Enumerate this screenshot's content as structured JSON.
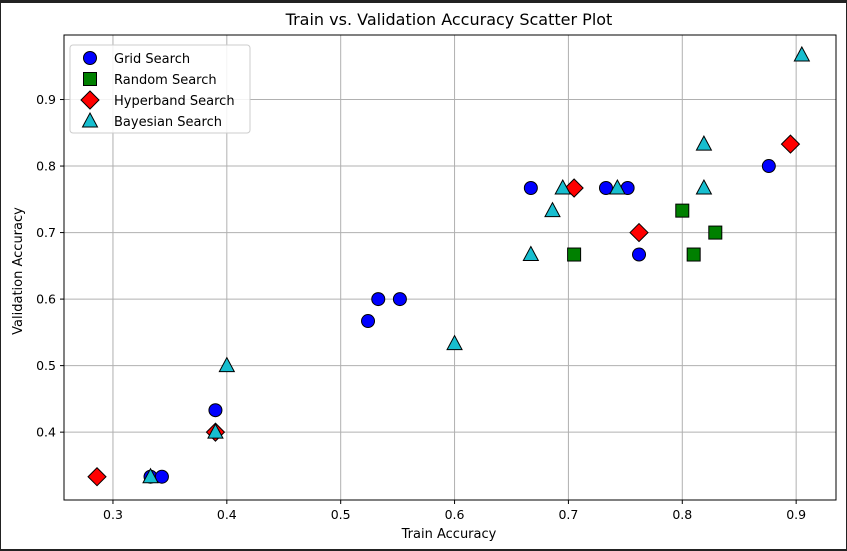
{
  "chart_data": {
    "type": "scatter",
    "title": "Train vs. Validation Accuracy Scatter Plot",
    "xlabel": "Train Accuracy",
    "ylabel": "Validation Accuracy",
    "xlim": [
      0.257,
      0.935
    ],
    "ylim": [
      0.298,
      0.997
    ],
    "xticks": [
      0.3,
      0.4,
      0.5,
      0.6,
      0.7,
      0.8,
      0.9
    ],
    "xtick_labels": [
      "0.3",
      "0.4",
      "0.5",
      "0.6",
      "0.7",
      "0.8",
      "0.9"
    ],
    "yticks": [
      0.4,
      0.5,
      0.6,
      0.7,
      0.8,
      0.9
    ],
    "ytick_labels": [
      "0.4",
      "0.5",
      "0.6",
      "0.7",
      "0.8",
      "0.9"
    ],
    "grid": true,
    "legend_position": "top-left",
    "series": [
      {
        "name": "Grid Search",
        "marker": "circle",
        "color": "#0000ff",
        "points": [
          [
            0.333,
            0.333
          ],
          [
            0.343,
            0.333
          ],
          [
            0.39,
            0.433
          ],
          [
            0.524,
            0.567
          ],
          [
            0.533,
            0.6
          ],
          [
            0.552,
            0.6
          ],
          [
            0.667,
            0.767
          ],
          [
            0.733,
            0.767
          ],
          [
            0.752,
            0.767
          ],
          [
            0.762,
            0.667
          ],
          [
            0.876,
            0.8
          ]
        ]
      },
      {
        "name": "Random Search",
        "marker": "square",
        "color": "#008000",
        "points": [
          [
            0.705,
            0.667
          ],
          [
            0.8,
            0.733
          ],
          [
            0.81,
            0.667
          ],
          [
            0.829,
            0.7
          ]
        ]
      },
      {
        "name": "Hyperband Search",
        "marker": "diamond",
        "color": "#ff0000",
        "points": [
          [
            0.286,
            0.333
          ],
          [
            0.39,
            0.4
          ],
          [
            0.705,
            0.767
          ],
          [
            0.762,
            0.7
          ],
          [
            0.895,
            0.833
          ]
        ]
      },
      {
        "name": "Bayesian Search",
        "marker": "triangle",
        "color": "#17becf",
        "points": [
          [
            0.333,
            0.333
          ],
          [
            0.39,
            0.4
          ],
          [
            0.4,
            0.5
          ],
          [
            0.6,
            0.533
          ],
          [
            0.667,
            0.667
          ],
          [
            0.686,
            0.733
          ],
          [
            0.695,
            0.767
          ],
          [
            0.743,
            0.767
          ],
          [
            0.819,
            0.833
          ],
          [
            0.819,
            0.767
          ],
          [
            0.905,
            0.967
          ]
        ]
      }
    ]
  }
}
